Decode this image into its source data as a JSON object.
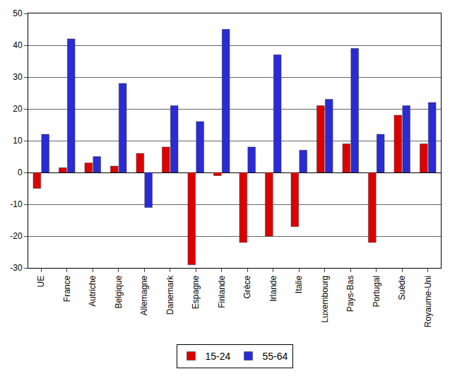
{
  "chart_data": {
    "type": "bar",
    "categories": [
      "UE",
      "France",
      "Autriche",
      "Belgique",
      "Allemagne",
      "Danemark",
      "Espagne",
      "Finlande",
      "Grèce",
      "Irlande",
      "Italie",
      "Luxembourg",
      "Pays-Bas",
      "Portugal",
      "Suède",
      "Royaume-Uni"
    ],
    "series": [
      {
        "name": "15-24",
        "color": "#dd0000",
        "values": [
          -5,
          1.5,
          3,
          2,
          6,
          8,
          -29,
          -1,
          -22,
          -20,
          -17,
          21,
          9,
          -22,
          18,
          9
        ]
      },
      {
        "name": "55-64",
        "color": "#2b2bd6",
        "values": [
          12,
          42,
          5,
          28,
          -11,
          21,
          16,
          45,
          8,
          37,
          7,
          23,
          39,
          12,
          21,
          22
        ]
      }
    ],
    "ylim": [
      -30,
      50
    ],
    "yticks": [
      -30,
      -20,
      -10,
      0,
      10,
      20,
      30,
      40,
      50
    ],
    "grid": true,
    "legend": "bottom"
  }
}
